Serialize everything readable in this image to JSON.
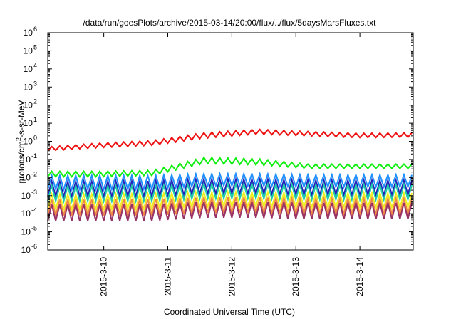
{
  "chart_data": {
    "type": "line",
    "title": "/data/run/goesPlots/archive/2015-03-14/20:00/flux/../flux/5daysMarsFluxes.txt",
    "xlabel": "Coordinated Universal Time (UTC)",
    "ylabel_parts": [
      "protons/cm",
      "2",
      "-s-sr-MeV"
    ],
    "x_range": [
      "2015-03-09 03:00",
      "2015-03-14 20:00"
    ],
    "x_ticks": [
      "2015-3-10",
      "2015-3-11",
      "2015-3-12",
      "2015-3-13",
      "2015-3-14"
    ],
    "y_scale": "log",
    "ylim": [
      1e-06,
      1000000.0
    ],
    "y_ticks": [
      {
        "base": "10",
        "exp": "-6"
      },
      {
        "base": "10",
        "exp": "-5"
      },
      {
        "base": "10",
        "exp": "-4"
      },
      {
        "base": "10",
        "exp": "-3"
      },
      {
        "base": "10",
        "exp": "-2"
      },
      {
        "base": "10",
        "exp": "-1"
      },
      {
        "base": "10",
        "exp": "0"
      },
      {
        "base": "10",
        "exp": "1"
      },
      {
        "base": "10",
        "exp": "2"
      },
      {
        "base": "10",
        "exp": "3"
      },
      {
        "base": "10",
        "exp": "4"
      },
      {
        "base": "10",
        "exp": "5"
      },
      {
        "base": "10",
        "exp": "6"
      }
    ],
    "grid": false,
    "period_hours": 3,
    "series": [
      {
        "color": "#ee1111",
        "low": [
          0.3,
          0.45,
          0.6,
          1.5,
          2.5,
          2.0,
          1.6,
          1.7
        ],
        "high": [
          0.5,
          0.8,
          1.1,
          3.0,
          4.6,
          3.5,
          2.8,
          3.0
        ],
        "upswings": 3
      },
      {
        "color": "#11ee11",
        "low": [
          0.011,
          0.011,
          0.013,
          0.06,
          0.05,
          0.032,
          0.032,
          0.032
        ],
        "high": [
          0.022,
          0.022,
          0.025,
          0.13,
          0.11,
          0.055,
          0.055,
          0.055
        ],
        "upswings": 4
      },
      {
        "color": "#1e90ff",
        "low": [
          0.0022,
          0.0022,
          0.0023,
          0.0035,
          0.0035,
          0.003,
          0.003,
          0.003
        ],
        "high": [
          0.013,
          0.013,
          0.013,
          0.016,
          0.016,
          0.014,
          0.014,
          0.014
        ],
        "upswings": 2
      },
      {
        "color": "#2222bb",
        "low": [
          0.0009,
          0.0009,
          0.0009,
          0.0013,
          0.0013,
          0.0011,
          0.0011,
          0.0011
        ],
        "high": [
          0.006,
          0.006,
          0.0065,
          0.008,
          0.008,
          0.007,
          0.007,
          0.007
        ],
        "upswings": 2
      },
      {
        "color": "#22ccaa",
        "low": [
          0.0005,
          0.0005,
          0.0005,
          0.0007,
          0.0007,
          0.0006,
          0.0006,
          0.0006
        ],
        "high": [
          0.0035,
          0.0035,
          0.0035,
          0.0045,
          0.0045,
          0.004,
          0.004,
          0.004
        ],
        "upswings": 2
      },
      {
        "color": "#eeee22",
        "low": [
          0.00018,
          0.00018,
          0.00019,
          0.00025,
          0.00025,
          0.00022,
          0.00022,
          0.00022
        ],
        "high": [
          0.0012,
          0.0012,
          0.0013,
          0.0016,
          0.0016,
          0.0014,
          0.0014,
          0.0014
        ],
        "upswings": 1
      },
      {
        "color": "#ee8844",
        "low": [
          8e-05,
          8e-05,
          8e-05,
          0.00011,
          0.00011,
          0.0001,
          0.0001,
          0.0001
        ],
        "high": [
          0.0006,
          0.0006,
          0.00065,
          0.0008,
          0.0008,
          0.0007,
          0.0007,
          0.0007
        ],
        "upswings": 1
      },
      {
        "color": "#993366",
        "low": [
          4e-05,
          4e-05,
          4e-05,
          6e-05,
          6e-05,
          5e-05,
          5e-05,
          5e-05
        ],
        "high": [
          0.00032,
          0.00032,
          0.00034,
          0.00045,
          0.00045,
          0.0004,
          0.0004,
          0.0004
        ],
        "upswings": 1
      }
    ]
  }
}
